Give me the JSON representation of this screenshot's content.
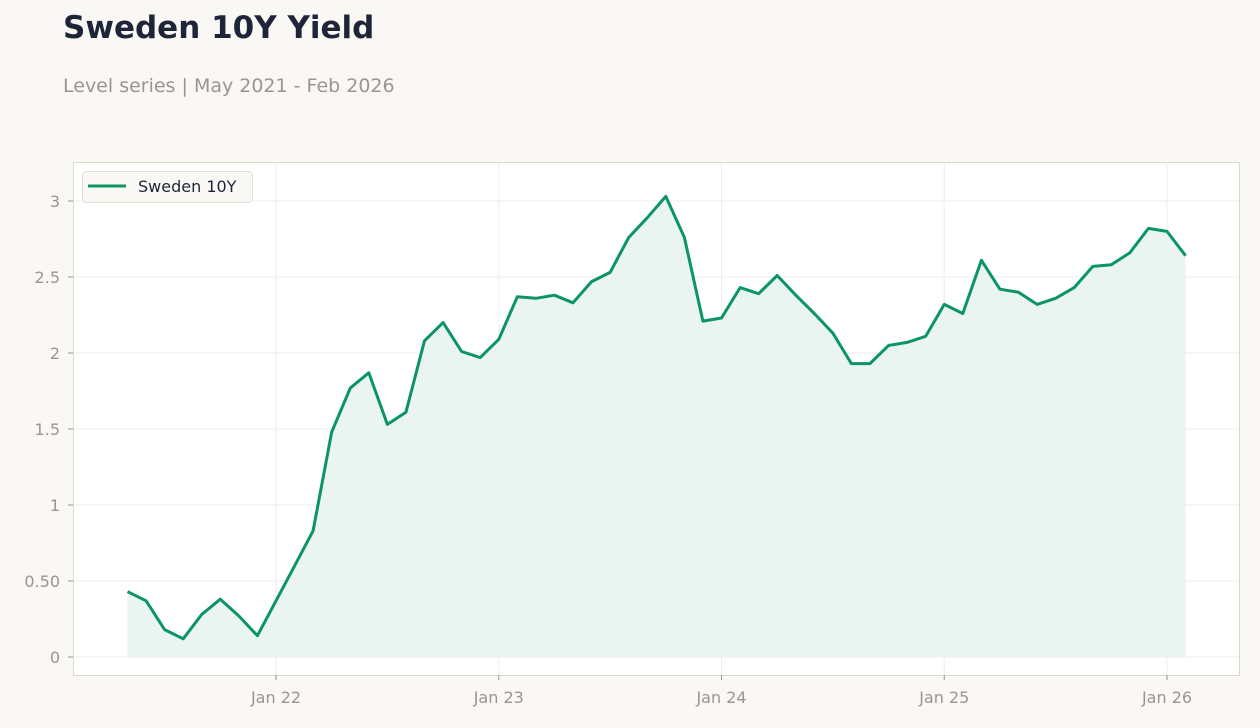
{
  "title": "Sweden 10Y Yield",
  "subtitle": "Level series | May 2021 - Feb 2026",
  "chart_data": {
    "type": "area",
    "title": "Sweden 10Y Yield",
    "subtitle": "Level series | May 2021 - Feb 2026",
    "xlabel": "",
    "ylabel": "",
    "ylim": [
      -0.11,
      3.25
    ],
    "yticks": [
      0,
      0.5,
      1,
      1.5,
      2,
      2.5,
      3
    ],
    "ytick_labels": [
      "0",
      "0.50",
      "1",
      "1.5",
      "2",
      "2.5",
      "3"
    ],
    "xticks": [
      "2022-01",
      "2023-01",
      "2024-01",
      "2025-01",
      "2026-01"
    ],
    "xtick_labels": [
      "Jan 22",
      "Jan 23",
      "Jan 24",
      "Jan 25",
      "Jan 26"
    ],
    "grid": true,
    "legend": "top-left",
    "color": "#0a9467",
    "fill_color": "#e8f4ef",
    "x": [
      "2021-05",
      "2021-06",
      "2021-07",
      "2021-08",
      "2021-09",
      "2021-10",
      "2021-11",
      "2021-12",
      "2022-01",
      "2022-02",
      "2022-03",
      "2022-04",
      "2022-05",
      "2022-06",
      "2022-07",
      "2022-08",
      "2022-09",
      "2022-10",
      "2022-11",
      "2022-12",
      "2023-01",
      "2023-02",
      "2023-03",
      "2023-04",
      "2023-05",
      "2023-06",
      "2023-07",
      "2023-08",
      "2023-09",
      "2023-10",
      "2023-11",
      "2023-12",
      "2024-01",
      "2024-02",
      "2024-03",
      "2024-04",
      "2024-05",
      "2024-06",
      "2024-07",
      "2024-08",
      "2024-09",
      "2024-10",
      "2024-11",
      "2024-12",
      "2025-01",
      "2025-02",
      "2025-03",
      "2025-04",
      "2025-05",
      "2025-06",
      "2025-07",
      "2025-08",
      "2025-09",
      "2025-10",
      "2025-11",
      "2025-12",
      "2026-01",
      "2026-02"
    ],
    "series": [
      {
        "name": "Sweden 10Y",
        "values": [
          0.43,
          0.37,
          0.18,
          0.12,
          0.28,
          0.38,
          0.27,
          0.14,
          0.37,
          0.6,
          0.83,
          1.48,
          1.77,
          1.87,
          1.53,
          1.61,
          2.08,
          2.2,
          2.01,
          1.97,
          2.09,
          2.37,
          2.36,
          2.38,
          2.33,
          2.47,
          2.53,
          2.76,
          2.89,
          3.03,
          2.76,
          2.21,
          2.23,
          2.43,
          2.39,
          2.51,
          2.38,
          2.26,
          2.13,
          1.93,
          1.93,
          2.05,
          2.07,
          2.11,
          2.32,
          2.26,
          2.61,
          2.42,
          2.4,
          2.32,
          2.36,
          2.43,
          2.57,
          2.58,
          2.66,
          2.82,
          2.8,
          2.64
        ]
      }
    ]
  }
}
